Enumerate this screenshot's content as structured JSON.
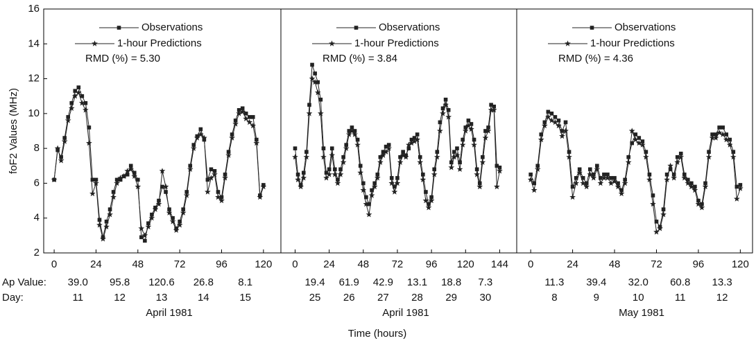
{
  "x_label": "Time (hours)",
  "chart_data": [
    {
      "type": "line",
      "y_label": "foF2 Values (MHz)",
      "x_title": "April 1981",
      "annotation": "RMD (%) = 5.30",
      "row_labels": [
        "Ap Value:",
        "Day:"
      ],
      "ap_values": [
        "39.0",
        "95.8",
        "120.6",
        "26.8",
        "8.1"
      ],
      "days": [
        11,
        12,
        13,
        14,
        15
      ],
      "xlim": [
        -6,
        130
      ],
      "xticks": [
        0,
        24,
        48,
        72,
        96,
        120
      ],
      "ylim": [
        2,
        16
      ],
      "yticks": [
        2,
        4,
        6,
        8,
        10,
        12,
        14,
        16
      ],
      "x": [
        0,
        2,
        4,
        6,
        8,
        10,
        12,
        14,
        16,
        18,
        20,
        22,
        24,
        26,
        28,
        30,
        32,
        34,
        36,
        38,
        40,
        42,
        44,
        46,
        48,
        50,
        52,
        54,
        56,
        58,
        60,
        62,
        64,
        66,
        68,
        70,
        72,
        74,
        76,
        78,
        80,
        82,
        84,
        86,
        88,
        90,
        92,
        94,
        96,
        98,
        100,
        102,
        104,
        106,
        108,
        110,
        112,
        114,
        116,
        118,
        120
      ],
      "series": [
        {
          "name": "Observations",
          "color": "#222222",
          "marker": "square",
          "values": [
            6.2,
            7.9,
            7.5,
            8.6,
            9.8,
            10.6,
            11.3,
            11.5,
            11.0,
            10.6,
            9.2,
            6.2,
            6.2,
            3.9,
            2.9,
            3.8,
            4.5,
            5.5,
            6.2,
            6.2,
            6.4,
            6.5,
            7.0,
            6.6,
            6.2,
            2.9,
            2.7,
            3.7,
            4.2,
            4.6,
            5.0,
            5.8,
            5.5,
            4.5,
            4.0,
            3.4,
            3.8,
            4.5,
            5.5,
            7.0,
            8.2,
            8.7,
            9.1,
            8.5,
            6.2,
            6.8,
            6.7,
            5.5,
            5.2,
            6.5,
            7.8,
            8.8,
            9.6,
            10.2,
            10.3,
            10.0,
            9.8,
            9.8,
            8.5,
            5.3,
            5.9
          ]
        },
        {
          "name": "1-hour Predictions",
          "color": "#222222",
          "marker": "star",
          "values": [
            6.2,
            8.0,
            7.3,
            8.4,
            9.6,
            10.3,
            11.0,
            11.2,
            10.6,
            10.2,
            8.3,
            5.4,
            6.0,
            3.6,
            2.8,
            3.5,
            4.2,
            5.2,
            6.0,
            6.3,
            6.4,
            6.7,
            6.8,
            6.4,
            5.8,
            3.4,
            3.0,
            3.5,
            4.0,
            4.5,
            4.8,
            6.7,
            5.8,
            4.3,
            3.8,
            3.3,
            3.6,
            4.3,
            5.3,
            6.8,
            8.0,
            8.6,
            8.8,
            8.6,
            5.5,
            6.3,
            6.5,
            5.2,
            5.0,
            6.3,
            7.6,
            8.6,
            9.4,
            10.0,
            10.1,
            9.7,
            9.5,
            9.3,
            8.3,
            5.2,
            5.8
          ]
        }
      ]
    },
    {
      "type": "line",
      "x_title": "April 1981",
      "annotation": "RMD (%) = 3.84",
      "ap_values": [
        "19.4",
        "61.9",
        "42.9",
        "13.1",
        "18.8",
        "7.3"
      ],
      "days": [
        25,
        26,
        27,
        28,
        29,
        30
      ],
      "xlim": [
        -10,
        156
      ],
      "xticks": [
        0,
        24,
        48,
        72,
        96,
        120,
        144
      ],
      "ylim": [
        2,
        16
      ],
      "x": [
        0,
        2,
        4,
        6,
        8,
        10,
        12,
        14,
        16,
        18,
        20,
        22,
        24,
        26,
        28,
        30,
        32,
        34,
        36,
        38,
        40,
        42,
        44,
        46,
        48,
        50,
        52,
        54,
        56,
        58,
        60,
        62,
        64,
        66,
        68,
        70,
        72,
        74,
        76,
        78,
        80,
        82,
        84,
        86,
        88,
        90,
        92,
        94,
        96,
        98,
        100,
        102,
        104,
        106,
        108,
        110,
        112,
        114,
        116,
        118,
        120,
        122,
        124,
        126,
        128,
        130,
        132,
        134,
        136,
        138,
        140,
        142,
        144
      ],
      "series": [
        {
          "name": "Observations",
          "color": "#222222",
          "marker": "square",
          "values": [
            8.0,
            6.5,
            5.9,
            6.6,
            7.8,
            10.5,
            12.8,
            12.3,
            11.8,
            10.8,
            8.0,
            6.6,
            6.8,
            8.0,
            6.8,
            6.2,
            6.8,
            7.5,
            8.2,
            9.0,
            9.2,
            9.0,
            8.5,
            7.0,
            6.0,
            5.2,
            4.8,
            5.6,
            6.0,
            6.5,
            7.5,
            7.8,
            8.1,
            8.2,
            6.3,
            5.8,
            6.3,
            7.5,
            7.8,
            7.6,
            8.0,
            8.5,
            8.6,
            8.8,
            7.5,
            6.5,
            5.5,
            4.8,
            5.2,
            6.8,
            7.8,
            9.5,
            10.3,
            10.8,
            10.2,
            7.2,
            7.8,
            8.0,
            7.2,
            8.5,
            9.2,
            9.6,
            9.4,
            8.5,
            6.8,
            6.0,
            7.5,
            9.0,
            9.2,
            10.5,
            10.4,
            7.0,
            6.9
          ]
        },
        {
          "name": "1-hour Predictions",
          "color": "#222222",
          "marker": "star",
          "values": [
            7.5,
            6.2,
            5.8,
            6.3,
            7.5,
            10.0,
            12.0,
            11.8,
            11.2,
            10.0,
            7.5,
            6.3,
            6.5,
            7.6,
            6.5,
            6.0,
            6.5,
            7.2,
            8.0,
            8.8,
            9.0,
            8.8,
            8.2,
            6.6,
            5.6,
            4.8,
            4.2,
            5.3,
            5.8,
            6.3,
            7.2,
            7.6,
            7.8,
            8.0,
            6.0,
            5.5,
            6.0,
            7.2,
            7.6,
            7.5,
            8.2,
            8.3,
            8.4,
            8.5,
            7.2,
            6.2,
            5.0,
            4.6,
            5.0,
            6.5,
            7.5,
            9.0,
            10.0,
            10.5,
            9.8,
            6.9,
            7.5,
            7.6,
            6.8,
            8.2,
            9.0,
            9.3,
            9.1,
            8.2,
            6.5,
            5.8,
            7.2,
            8.6,
            9.0,
            10.2,
            10.2,
            5.8,
            6.7
          ]
        }
      ]
    },
    {
      "type": "line",
      "x_title": "May 1981",
      "annotation": "RMD (%) = 4.36",
      "ap_values": [
        "11.3",
        "39.4",
        "32.0",
        "60.8",
        "13.3"
      ],
      "days": [
        8,
        9,
        10,
        11,
        12
      ],
      "xlim": [
        -8,
        127
      ],
      "xticks": [
        0,
        24,
        48,
        72,
        96,
        120
      ],
      "ylim": [
        2,
        16
      ],
      "x": [
        0,
        2,
        4,
        6,
        8,
        10,
        12,
        14,
        16,
        18,
        20,
        22,
        24,
        26,
        28,
        30,
        32,
        34,
        36,
        38,
        40,
        42,
        44,
        46,
        48,
        50,
        52,
        54,
        56,
        58,
        60,
        62,
        64,
        66,
        68,
        70,
        72,
        74,
        76,
        78,
        80,
        82,
        84,
        86,
        88,
        90,
        92,
        94,
        96,
        98,
        100,
        102,
        104,
        106,
        108,
        110,
        112,
        114,
        116,
        118,
        120
      ],
      "series": [
        {
          "name": "Observations",
          "color": "#222222",
          "marker": "square",
          "values": [
            6.5,
            6.0,
            7.0,
            8.8,
            9.5,
            10.1,
            10.0,
            9.8,
            9.6,
            9.0,
            9.5,
            7.8,
            5.8,
            6.3,
            6.8,
            6.3,
            6.0,
            6.8,
            6.5,
            7.0,
            6.3,
            6.5,
            6.5,
            6.3,
            6.3,
            6.0,
            5.6,
            6.2,
            7.5,
            8.3,
            8.8,
            8.6,
            8.4,
            7.8,
            6.5,
            5.3,
            3.8,
            3.5,
            4.5,
            6.5,
            6.8,
            6.5,
            7.5,
            7.7,
            6.5,
            6.2,
            6.0,
            5.8,
            5.0,
            4.8,
            6.0,
            7.8,
            8.8,
            8.8,
            9.2,
            9.2,
            8.8,
            8.5,
            7.8,
            5.8,
            5.9
          ]
        },
        {
          "name": "1-hour Predictions",
          "color": "#222222",
          "marker": "star",
          "values": [
            6.2,
            5.6,
            6.8,
            8.5,
            9.3,
            9.8,
            9.6,
            9.5,
            9.3,
            8.7,
            9.0,
            7.5,
            5.2,
            6.0,
            6.6,
            6.0,
            5.8,
            6.5,
            6.3,
            6.8,
            6.0,
            6.3,
            6.3,
            6.0,
            6.1,
            5.8,
            5.4,
            6.0,
            7.2,
            9.0,
            8.5,
            8.3,
            8.2,
            7.5,
            6.2,
            4.8,
            3.2,
            3.4,
            4.2,
            6.2,
            7.0,
            6.3,
            7.2,
            7.5,
            6.3,
            6.0,
            5.8,
            5.6,
            4.8,
            4.6,
            5.8,
            7.5,
            8.6,
            8.6,
            8.9,
            8.8,
            8.5,
            8.2,
            7.5,
            5.1,
            5.7
          ]
        }
      ]
    }
  ]
}
